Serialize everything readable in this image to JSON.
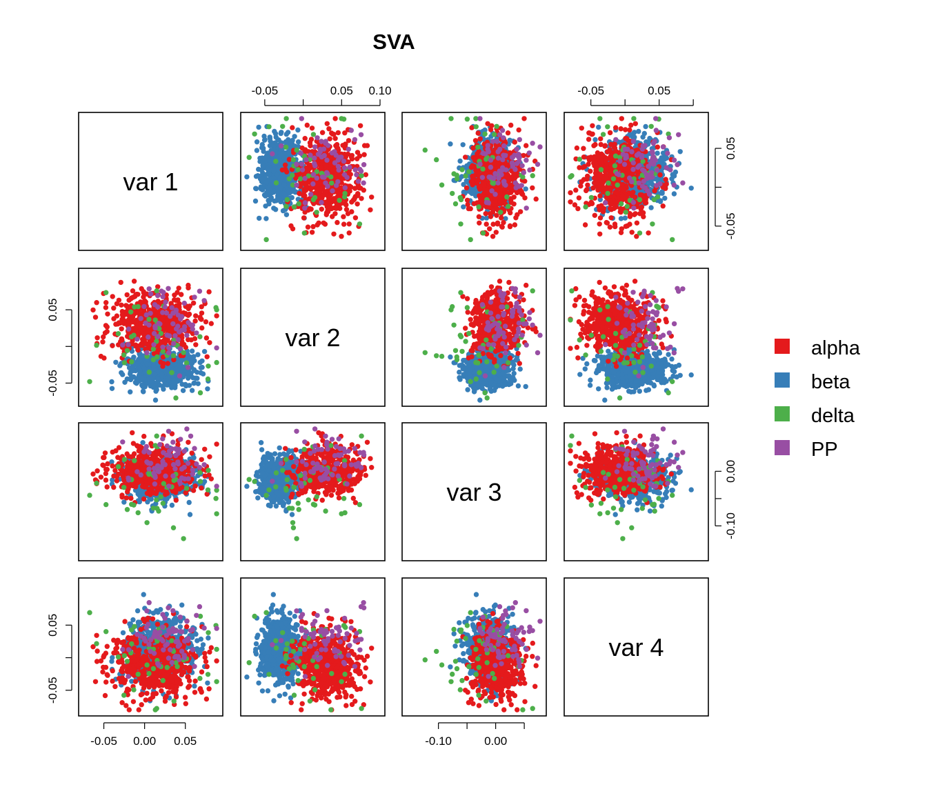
{
  "chart_data": {
    "type": "scatter",
    "subtype": "pairs",
    "title": "SVA",
    "variables": [
      "var 1",
      "var 2",
      "var 3",
      "var 4"
    ],
    "ranges": {
      "var 1": [
        -0.075,
        0.09
      ],
      "var 2": [
        -0.075,
        0.1
      ],
      "var 3": [
        -0.155,
        0.08
      ],
      "var 4": [
        -0.082,
        0.115
      ]
    },
    "ticks": {
      "var 1": [
        {
          "v": -0.05,
          "label": "-0.05"
        },
        {
          "v": 0,
          "label": "0.00"
        },
        {
          "v": 0.05,
          "label": "0.05"
        }
      ],
      "var 2": [
        {
          "v": -0.05,
          "label": "-0.05"
        },
        {
          "v": 0,
          "label": ""
        },
        {
          "v": 0.05,
          "label": "0.05"
        },
        {
          "v": 0.1,
          "label": "0.10"
        }
      ],
      "var 3": [
        {
          "v": -0.1,
          "label": "-0.10"
        },
        {
          "v": -0.05,
          "label": ""
        },
        {
          "v": 0,
          "label": "0.00"
        },
        {
          "v": 0.05,
          "label": ""
        }
      ],
      "var 4": [
        {
          "v": -0.05,
          "label": "-0.05"
        },
        {
          "v": 0,
          "label": ""
        },
        {
          "v": 0.05,
          "label": "0.05"
        },
        {
          "v": 0.1,
          "label": ""
        }
      ]
    },
    "row_ticks": {
      "var 1": [
        {
          "v": -0.05,
          "label": "-0.05"
        },
        {
          "v": 0,
          "label": ""
        },
        {
          "v": 0.05,
          "label": "0.05"
        }
      ],
      "var 2": [
        {
          "v": -0.05,
          "label": "-0.05"
        },
        {
          "v": 0,
          "label": ""
        },
        {
          "v": 0.05,
          "label": "0.05"
        }
      ],
      "var 3": [
        {
          "v": -0.1,
          "label": "-0.10"
        },
        {
          "v": -0.05,
          "label": ""
        },
        {
          "v": 0,
          "label": "0.00"
        }
      ],
      "var 4": [
        {
          "v": -0.05,
          "label": "-0.05"
        },
        {
          "v": 0,
          "label": ""
        },
        {
          "v": 0.05,
          "label": "0.05"
        }
      ]
    },
    "legend": {
      "position": "right",
      "entries": [
        {
          "label": "alpha",
          "color": "#E41A1C"
        },
        {
          "label": "beta",
          "color": "#377EB8"
        },
        {
          "label": "delta",
          "color": "#4DAF4A"
        },
        {
          "label": "PP",
          "color": "#984EA3"
        }
      ]
    },
    "series": [
      {
        "name": "alpha",
        "color": "#E41A1C",
        "count": 540,
        "mean": [
          0.01,
          0.03,
          0.0,
          -0.01
        ],
        "sd": [
          0.028,
          0.022,
          0.022,
          0.025
        ]
      },
      {
        "name": "beta",
        "color": "#377EB8",
        "count": 620,
        "mean": [
          0.02,
          -0.03,
          -0.01,
          0.01
        ],
        "sd": [
          0.022,
          0.014,
          0.02,
          0.025
        ]
      },
      {
        "name": "delta",
        "color": "#4DAF4A",
        "count": 45,
        "mean": [
          0.01,
          0.01,
          -0.02,
          0.0
        ],
        "sd": [
          0.035,
          0.035,
          0.045,
          0.04
        ]
      },
      {
        "name": "PP",
        "color": "#984EA3",
        "count": 70,
        "mean": [
          0.03,
          0.03,
          0.02,
          0.03
        ],
        "sd": [
          0.025,
          0.025,
          0.025,
          0.025
        ]
      }
    ],
    "grid": false
  }
}
